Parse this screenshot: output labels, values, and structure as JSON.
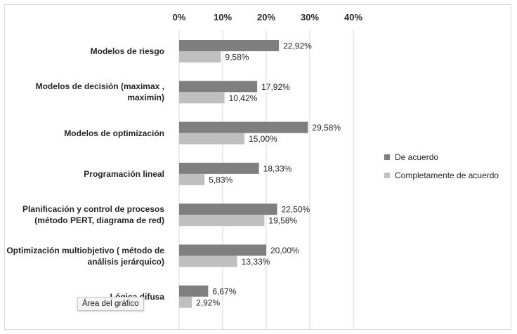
{
  "tooltip_text": "Área del gráfico",
  "chart_data": {
    "type": "bar",
    "orientation": "horizontal",
    "title": "",
    "xlabel": "",
    "ylabel": "",
    "xlim": [
      0,
      40
    ],
    "x_tick_labels": [
      "0%",
      "10%",
      "20%",
      "30%",
      "40%"
    ],
    "x_ticks": [
      0,
      10,
      20,
      30,
      40
    ],
    "axis_position": "top",
    "grid": true,
    "legend_position": "right",
    "categories": [
      "Modelos de riesgo",
      "Modelos de decisión (maximax , maximin)",
      "Modelos de optimización",
      "Programación lineal",
      "Planificación y control de procesos (método PERT, diagrama de red)",
      "Optimización multiobjetivo ( método de análisis jerárquico)",
      "Lógica difusa"
    ],
    "category_lines": [
      [
        "Modelos de riesgo"
      ],
      [
        "Modelos de decisión (maximax ,",
        "maximin)"
      ],
      [
        "Modelos de optimización"
      ],
      [
        "Programación lineal"
      ],
      [
        "Planificación y control de procesos",
        "(método PERT, diagrama de red)"
      ],
      [
        "Optimización multiobjetivo ( método de",
        "análisis jerárquico)"
      ],
      [
        "Lógica difusa"
      ]
    ],
    "series": [
      {
        "name": "De acuerdo",
        "color": "#7f7f7f",
        "values": [
          22.92,
          17.92,
          29.58,
          18.33,
          22.5,
          20.0,
          6.67
        ],
        "labels": [
          "22,92%",
          "17,92%",
          "29,58%",
          "18,33%",
          "22,50%",
          "20,00%",
          "6,67%"
        ]
      },
      {
        "name": "Completamente de acuerdo",
        "color": "#bfbfbf",
        "values": [
          9.58,
          10.42,
          15.0,
          5.83,
          19.58,
          13.33,
          2.92
        ],
        "labels": [
          "9,58%",
          "10,42%",
          "15,00%",
          "5,83%",
          "19,58%",
          "13,33%",
          "2,92%"
        ]
      }
    ]
  }
}
